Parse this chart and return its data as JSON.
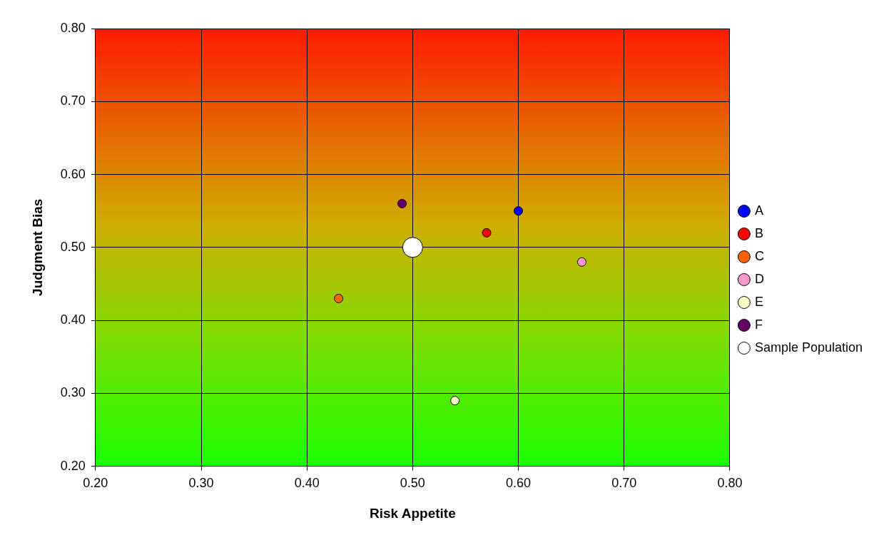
{
  "chart_data": {
    "type": "scatter",
    "xlabel": "Risk Appetite",
    "ylabel": "Judgment Bias",
    "xlim": [
      0.2,
      0.8
    ],
    "ylim": [
      0.2,
      0.8
    ],
    "xticks": [
      {
        "value": 0.2,
        "label": "0.20"
      },
      {
        "value": 0.3,
        "label": "0.30"
      },
      {
        "value": 0.4,
        "label": "0.40"
      },
      {
        "value": 0.5,
        "label": "0.50"
      },
      {
        "value": 0.6,
        "label": "0.60"
      },
      {
        "value": 0.7,
        "label": "0.70"
      },
      {
        "value": 0.8,
        "label": "0.80"
      }
    ],
    "yticks": [
      {
        "value": 0.2,
        "label": "0.20"
      },
      {
        "value": 0.3,
        "label": "0.30"
      },
      {
        "value": 0.4,
        "label": "0.40"
      },
      {
        "value": 0.5,
        "label": "0.50"
      },
      {
        "value": 0.6,
        "label": "0.60"
      },
      {
        "value": 0.7,
        "label": "0.70"
      },
      {
        "value": 0.8,
        "label": "0.80"
      }
    ],
    "grid": true,
    "legend": "right",
    "marker": "circle",
    "series": [
      {
        "name": "A",
        "color": "#0000ff",
        "x": [
          0.6
        ],
        "values": [
          0.55
        ]
      },
      {
        "name": "B",
        "color": "#ff0000",
        "x": [
          0.57
        ],
        "values": [
          0.52
        ]
      },
      {
        "name": "C",
        "color": "#ff6600",
        "x": [
          0.43
        ],
        "values": [
          0.43
        ]
      },
      {
        "name": "D",
        "color": "#ff99cc",
        "x": [
          0.66
        ],
        "values": [
          0.48
        ]
      },
      {
        "name": "E",
        "color": "#ffffcc",
        "x": [
          0.54
        ],
        "values": [
          0.29
        ]
      },
      {
        "name": "F",
        "color": "#660066",
        "x": [
          0.49
        ],
        "values": [
          0.56
        ]
      },
      {
        "name": "Sample Population",
        "color": "#ffffff",
        "x": [
          0.5
        ],
        "values": [
          0.5
        ]
      }
    ]
  }
}
